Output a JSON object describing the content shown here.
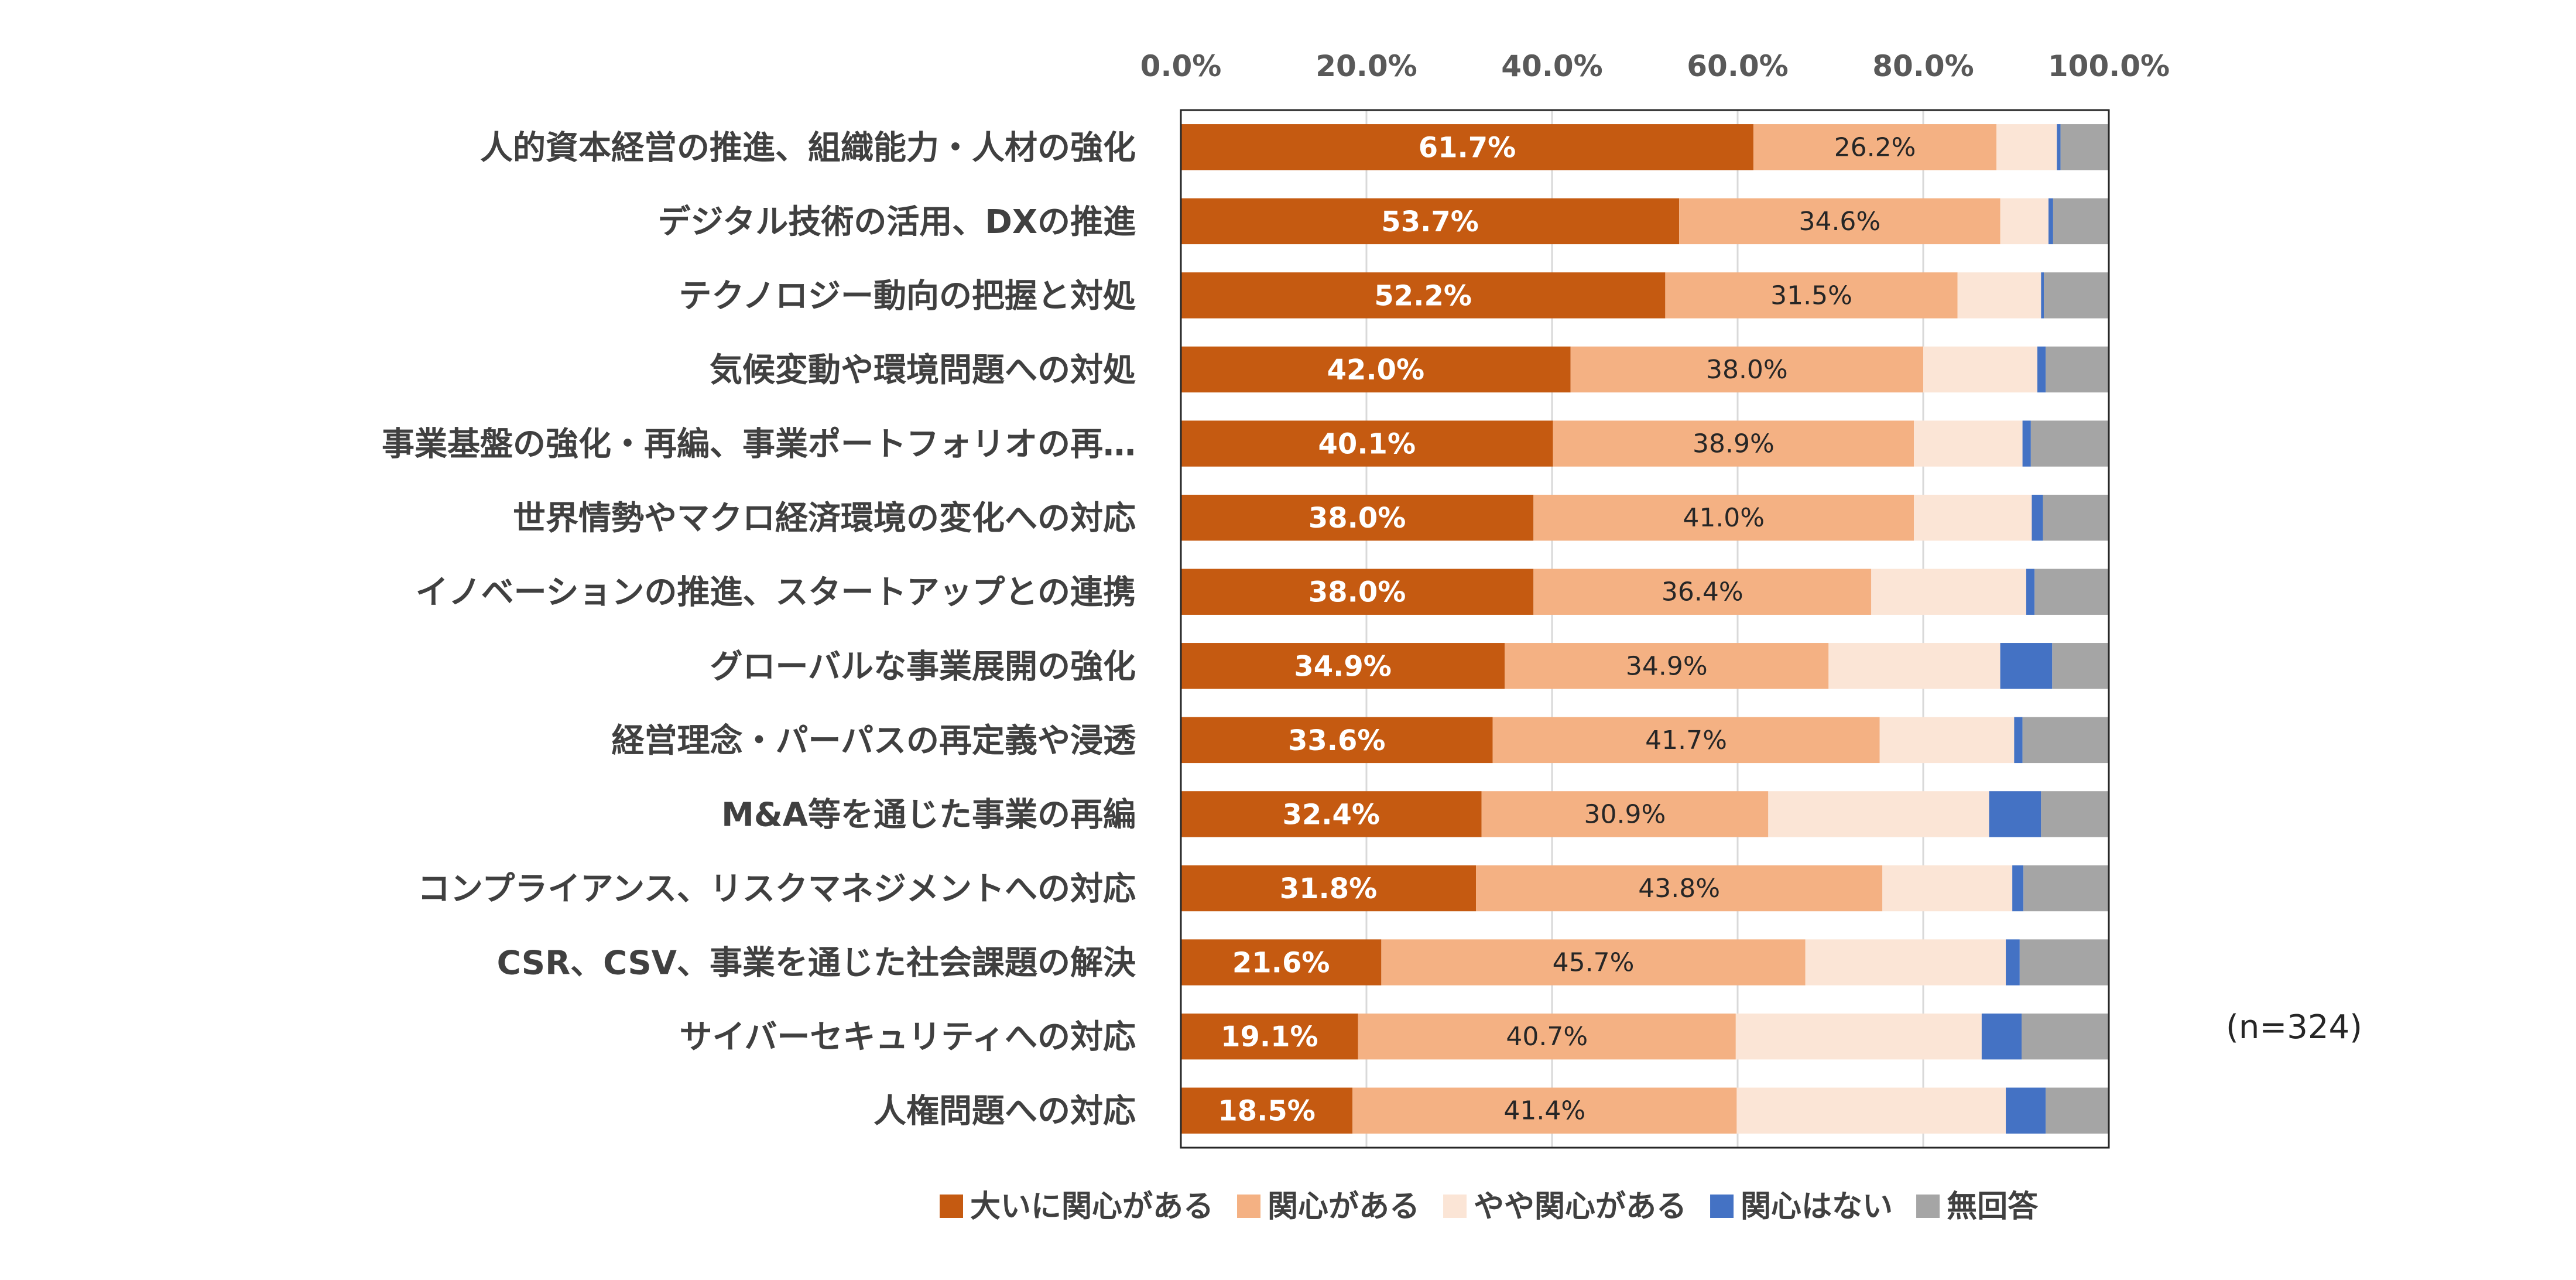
{
  "chart_data": {
    "type": "bar",
    "orientation": "horizontal",
    "stacked": true,
    "xlim": [
      0,
      100
    ],
    "x_ticks": [
      "0.0%",
      "20.0%",
      "40.0%",
      "60.0%",
      "80.0%",
      "100.0%"
    ],
    "sample_note": "(n=324)",
    "categories": [
      "人的資本経営の推進、組織能力・人材の強化",
      "デジタル技術の活用、DXの推進",
      "テクノロジー動向の把握と対処",
      "気候変動や環境問題への対処",
      "事業基盤の強化・再編、事業ポートフォリオの再…",
      "世界情勢やマクロ経済環境の変化への対応",
      "イノベーションの推進、スタートアップとの連携",
      "グローバルな事業展開の強化",
      "経営理念・パーパスの再定義や浸透",
      "M&A等を通じた事業の再編",
      "コンプライアンス、リスクマネジメントへの対応",
      "CSR、CSV、事業を通じた社会課題の解決",
      "サイバーセキュリティへの対応",
      "人権問題への対応"
    ],
    "series": [
      {
        "name": "大いに関心がある",
        "color": "#C55A11",
        "labeled": true,
        "values": [
          61.7,
          53.7,
          52.2,
          42.0,
          40.1,
          38.0,
          38.0,
          34.9,
          33.6,
          32.4,
          31.8,
          21.6,
          19.1,
          18.5
        ],
        "labels": [
          "61.7%",
          "53.7%",
          "52.2%",
          "42.0%",
          "40.1%",
          "38.0%",
          "38.0%",
          "34.9%",
          "33.6%",
          "32.4%",
          "31.8%",
          "21.6%",
          "19.1%",
          "18.5%"
        ]
      },
      {
        "name": "関心がある",
        "color": "#F4B183",
        "labeled": true,
        "values": [
          26.2,
          34.6,
          31.5,
          38.0,
          38.9,
          41.0,
          36.4,
          34.9,
          41.7,
          30.9,
          43.8,
          45.7,
          40.7,
          41.4
        ],
        "labels": [
          "26.2%",
          "34.6%",
          "31.5%",
          "38.0%",
          "38.9%",
          "41.0%",
          "36.4%",
          "34.9%",
          "41.7%",
          "30.9%",
          "43.8%",
          "45.7%",
          "40.7%",
          "41.4%"
        ]
      },
      {
        "name": "やや関心がある",
        "color": "#FBE5D6",
        "labeled": false,
        "values": [
          6.5,
          5.2,
          9.0,
          12.3,
          11.7,
          12.7,
          16.7,
          18.5,
          14.5,
          23.8,
          14.0,
          21.6,
          26.5,
          29.0
        ]
      },
      {
        "name": "関心はない",
        "color": "#4472C4",
        "labeled": false,
        "values": [
          0.4,
          0.5,
          0.3,
          0.9,
          0.9,
          1.2,
          0.9,
          5.6,
          0.9,
          5.6,
          1.2,
          1.5,
          4.3,
          4.3
        ]
      },
      {
        "name": "無回答",
        "color": "#A5A5A5",
        "labeled": false,
        "values": [
          5.2,
          6.0,
          7.0,
          6.8,
          8.4,
          7.1,
          8.0,
          6.1,
          9.3,
          7.3,
          9.2,
          9.6,
          9.4,
          6.8
        ]
      }
    ]
  }
}
